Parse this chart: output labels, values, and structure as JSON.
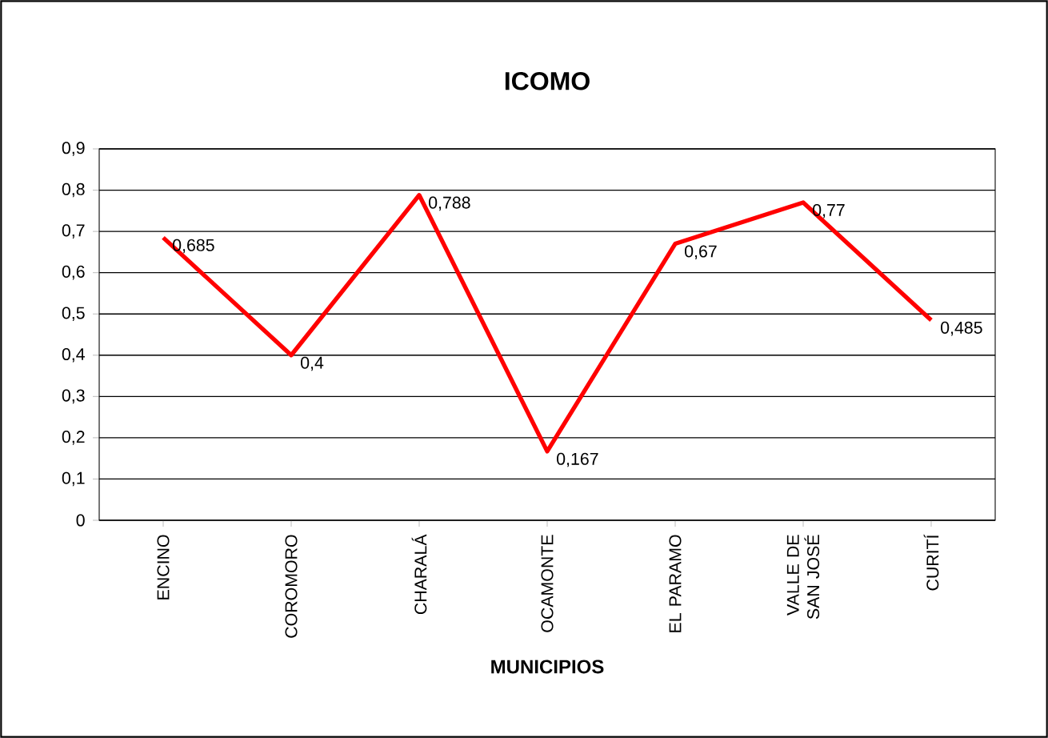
{
  "chart_data": {
    "type": "line",
    "title": "ICOMO",
    "xlabel": "MUNICIPIOS",
    "categories": [
      "ENCINO",
      "COROMORO",
      "CHARALÁ",
      "OCAMONTE",
      "EL PARAMO",
      "VALLE DE SAN JOSÉ",
      "CURITÍ"
    ],
    "values": [
      0.685,
      0.4,
      0.788,
      0.167,
      0.67,
      0.77,
      0.485
    ],
    "value_labels": [
      "0,685",
      "0,4",
      "0,788",
      "0,167",
      "0,67",
      "0,77",
      "0,485"
    ],
    "color": "#ff0000",
    "marker": "none",
    "grid": "y",
    "ylim": [
      0,
      0.9
    ],
    "yticks": [
      0,
      {
        "value": 0.1,
        "label": "0,1"
      },
      {
        "value": 0.2,
        "label": "0,2"
      },
      {
        "value": 0.3,
        "label": "0,3"
      },
      {
        "value": 0.4,
        "label": "0,4"
      },
      {
        "value": 0.5,
        "label": "0,5"
      },
      {
        "value": 0.6,
        "label": "0,6"
      },
      {
        "value": 0.7,
        "label": "0,7"
      },
      {
        "value": 0.8,
        "label": "0,8"
      },
      {
        "value": 0.9,
        "label": "0,9"
      }
    ]
  }
}
